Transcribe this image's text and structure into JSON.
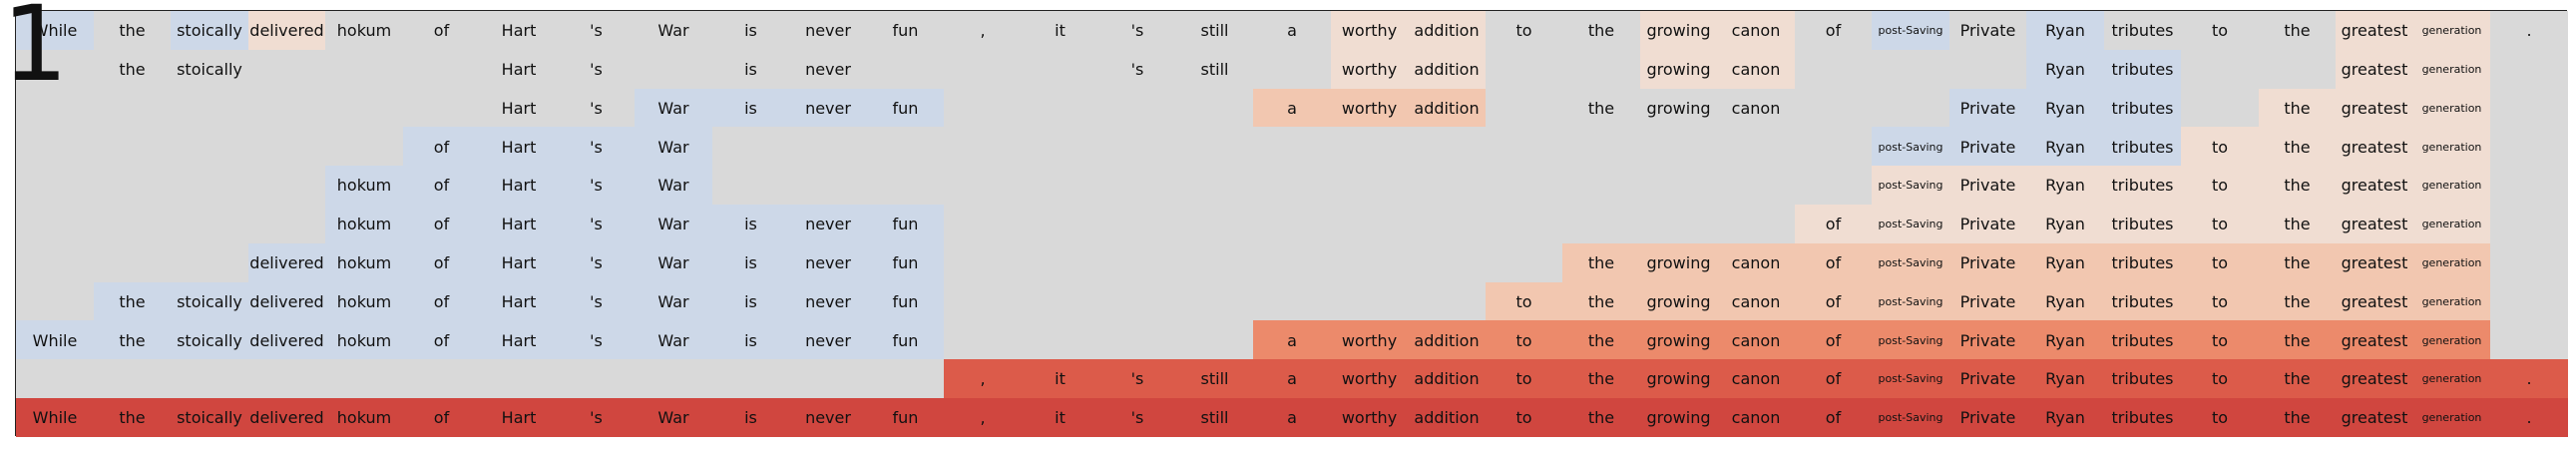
{
  "figure": {
    "title": "1"
  },
  "legend": {
    "empty": "#d9d9d9",
    "scale": [
      "#cdd8e8",
      "#f0ddd2",
      "#f2c7b0",
      "#ec8a6b",
      "#dc5b4a",
      "#d0463f"
    ]
  },
  "tokens": [
    "While",
    "the",
    "stoically",
    "delivered",
    "hokum",
    "of",
    "Hart",
    "'s",
    "War",
    "is",
    "never",
    "fun",
    ",",
    "it",
    "'s",
    "still",
    "a",
    "worthy",
    "addition",
    "to",
    "the",
    "growing",
    "canon",
    "of",
    "post-Saving",
    "Private",
    "Ryan",
    "tributes",
    "to",
    "the",
    "greatest",
    "generation",
    "."
  ],
  "rows": [
    {
      "cells": [
        [
          0,
          1
        ],
        [
          1,
          0
        ],
        [
          2,
          1
        ],
        [
          3,
          2
        ],
        [
          4,
          0
        ],
        [
          5,
          0
        ],
        [
          6,
          0
        ],
        [
          7,
          0
        ],
        [
          8,
          0
        ],
        [
          9,
          0
        ],
        [
          10,
          0
        ],
        [
          11,
          0
        ],
        [
          12,
          0
        ],
        [
          13,
          0
        ],
        [
          14,
          0
        ],
        [
          15,
          0
        ],
        [
          16,
          0
        ],
        [
          17,
          2
        ],
        [
          18,
          2
        ],
        [
          19,
          0
        ],
        [
          20,
          0
        ],
        [
          21,
          2
        ],
        [
          22,
          2
        ],
        [
          23,
          0
        ],
        [
          24,
          1
        ],
        [
          25,
          0
        ],
        [
          26,
          1
        ],
        [
          27,
          0
        ],
        [
          28,
          0
        ],
        [
          29,
          0
        ],
        [
          30,
          2
        ],
        [
          31,
          2
        ],
        [
          32,
          0
        ]
      ]
    },
    {
      "cells": [
        [
          0,
          -1
        ],
        [
          1,
          0
        ],
        [
          2,
          0
        ],
        [
          3,
          -1
        ],
        [
          4,
          -1
        ],
        [
          5,
          -1
        ],
        [
          6,
          0
        ],
        [
          7,
          0
        ],
        [
          8,
          -1
        ],
        [
          9,
          0
        ],
        [
          10,
          0
        ],
        [
          11,
          -1
        ],
        [
          12,
          -1
        ],
        [
          13,
          -1
        ],
        [
          14,
          0
        ],
        [
          15,
          0
        ],
        [
          16,
          -1
        ],
        [
          17,
          2
        ],
        [
          18,
          2
        ],
        [
          19,
          -1
        ],
        [
          20,
          -1
        ],
        [
          21,
          2
        ],
        [
          22,
          2
        ],
        [
          23,
          -1
        ],
        [
          24,
          -1
        ],
        [
          25,
          -1
        ],
        [
          26,
          1
        ],
        [
          27,
          1
        ],
        [
          28,
          -1
        ],
        [
          29,
          -1
        ],
        [
          30,
          2
        ],
        [
          31,
          2
        ],
        [
          32,
          -1
        ]
      ]
    },
    {
      "cells": [
        [
          0,
          -1
        ],
        [
          1,
          -1
        ],
        [
          2,
          -1
        ],
        [
          3,
          -1
        ],
        [
          4,
          -1
        ],
        [
          5,
          -1
        ],
        [
          6,
          0
        ],
        [
          7,
          0
        ],
        [
          8,
          1
        ],
        [
          9,
          1
        ],
        [
          10,
          1
        ],
        [
          11,
          1
        ],
        [
          12,
          -1
        ],
        [
          13,
          -1
        ],
        [
          14,
          -1
        ],
        [
          15,
          -1
        ],
        [
          16,
          3
        ],
        [
          17,
          3
        ],
        [
          18,
          3
        ],
        [
          19,
          -1
        ],
        [
          20,
          0
        ],
        [
          21,
          0
        ],
        [
          22,
          0
        ],
        [
          23,
          -1
        ],
        [
          24,
          -1
        ],
        [
          25,
          1
        ],
        [
          26,
          1
        ],
        [
          27,
          1
        ],
        [
          28,
          -1
        ],
        [
          29,
          2
        ],
        [
          30,
          2
        ],
        [
          31,
          2
        ],
        [
          32,
          -1
        ]
      ]
    },
    {
      "cells": [
        [
          0,
          -1
        ],
        [
          1,
          -1
        ],
        [
          2,
          -1
        ],
        [
          3,
          -1
        ],
        [
          4,
          -1
        ],
        [
          5,
          1
        ],
        [
          6,
          1
        ],
        [
          7,
          1
        ],
        [
          8,
          1
        ],
        [
          9,
          -1
        ],
        [
          10,
          -1
        ],
        [
          11,
          -1
        ],
        [
          12,
          -1
        ],
        [
          13,
          -1
        ],
        [
          14,
          -1
        ],
        [
          15,
          -1
        ],
        [
          16,
          -1
        ],
        [
          17,
          -1
        ],
        [
          18,
          -1
        ],
        [
          19,
          -1
        ],
        [
          20,
          -1
        ],
        [
          21,
          -1
        ],
        [
          22,
          -1
        ],
        [
          23,
          -1
        ],
        [
          24,
          1
        ],
        [
          25,
          1
        ],
        [
          26,
          1
        ],
        [
          27,
          1
        ],
        [
          28,
          2
        ],
        [
          29,
          2
        ],
        [
          30,
          2
        ],
        [
          31,
          2
        ],
        [
          32,
          -1
        ]
      ]
    },
    {
      "cells": [
        [
          0,
          -1
        ],
        [
          1,
          -1
        ],
        [
          2,
          -1
        ],
        [
          3,
          -1
        ],
        [
          4,
          1
        ],
        [
          5,
          1
        ],
        [
          6,
          1
        ],
        [
          7,
          1
        ],
        [
          8,
          1
        ],
        [
          9,
          -1
        ],
        [
          10,
          -1
        ],
        [
          11,
          -1
        ],
        [
          12,
          -1
        ],
        [
          13,
          -1
        ],
        [
          14,
          -1
        ],
        [
          15,
          -1
        ],
        [
          16,
          -1
        ],
        [
          17,
          -1
        ],
        [
          18,
          -1
        ],
        [
          19,
          -1
        ],
        [
          20,
          -1
        ],
        [
          21,
          -1
        ],
        [
          22,
          -1
        ],
        [
          23,
          -1
        ],
        [
          24,
          2
        ],
        [
          25,
          2
        ],
        [
          26,
          2
        ],
        [
          27,
          2
        ],
        [
          28,
          2
        ],
        [
          29,
          2
        ],
        [
          30,
          2
        ],
        [
          31,
          2
        ],
        [
          32,
          -1
        ]
      ]
    },
    {
      "cells": [
        [
          0,
          -1
        ],
        [
          1,
          -1
        ],
        [
          2,
          -1
        ],
        [
          3,
          -1
        ],
        [
          4,
          1
        ],
        [
          5,
          1
        ],
        [
          6,
          1
        ],
        [
          7,
          1
        ],
        [
          8,
          1
        ],
        [
          9,
          1
        ],
        [
          10,
          1
        ],
        [
          11,
          1
        ],
        [
          12,
          -1
        ],
        [
          13,
          -1
        ],
        [
          14,
          -1
        ],
        [
          15,
          -1
        ],
        [
          16,
          -1
        ],
        [
          17,
          -1
        ],
        [
          18,
          -1
        ],
        [
          19,
          -1
        ],
        [
          20,
          -1
        ],
        [
          21,
          -1
        ],
        [
          22,
          -1
        ],
        [
          23,
          2
        ],
        [
          24,
          2
        ],
        [
          25,
          2
        ],
        [
          26,
          2
        ],
        [
          27,
          2
        ],
        [
          28,
          2
        ],
        [
          29,
          2
        ],
        [
          30,
          2
        ],
        [
          31,
          2
        ],
        [
          32,
          -1
        ]
      ]
    },
    {
      "cells": [
        [
          0,
          -1
        ],
        [
          1,
          -1
        ],
        [
          2,
          -1
        ],
        [
          3,
          1
        ],
        [
          4,
          1
        ],
        [
          5,
          1
        ],
        [
          6,
          1
        ],
        [
          7,
          1
        ],
        [
          8,
          1
        ],
        [
          9,
          1
        ],
        [
          10,
          1
        ],
        [
          11,
          1
        ],
        [
          12,
          -1
        ],
        [
          13,
          -1
        ],
        [
          14,
          -1
        ],
        [
          15,
          -1
        ],
        [
          16,
          -1
        ],
        [
          17,
          -1
        ],
        [
          18,
          -1
        ],
        [
          19,
          -1
        ],
        [
          20,
          3
        ],
        [
          21,
          3
        ],
        [
          22,
          3
        ],
        [
          23,
          3
        ],
        [
          24,
          3
        ],
        [
          25,
          3
        ],
        [
          26,
          3
        ],
        [
          27,
          3
        ],
        [
          28,
          3
        ],
        [
          29,
          3
        ],
        [
          30,
          3
        ],
        [
          31,
          3
        ],
        [
          32,
          -1
        ]
      ]
    },
    {
      "cells": [
        [
          0,
          -1
        ],
        [
          1,
          1
        ],
        [
          2,
          1
        ],
        [
          3,
          1
        ],
        [
          4,
          1
        ],
        [
          5,
          1
        ],
        [
          6,
          1
        ],
        [
          7,
          1
        ],
        [
          8,
          1
        ],
        [
          9,
          1
        ],
        [
          10,
          1
        ],
        [
          11,
          1
        ],
        [
          12,
          -1
        ],
        [
          13,
          -1
        ],
        [
          14,
          -1
        ],
        [
          15,
          -1
        ],
        [
          16,
          -1
        ],
        [
          17,
          -1
        ],
        [
          18,
          -1
        ],
        [
          19,
          3
        ],
        [
          20,
          3
        ],
        [
          21,
          3
        ],
        [
          22,
          3
        ],
        [
          23,
          3
        ],
        [
          24,
          3
        ],
        [
          25,
          3
        ],
        [
          26,
          3
        ],
        [
          27,
          3
        ],
        [
          28,
          3
        ],
        [
          29,
          3
        ],
        [
          30,
          3
        ],
        [
          31,
          3
        ],
        [
          32,
          -1
        ]
      ]
    },
    {
      "cells": [
        [
          0,
          1
        ],
        [
          1,
          1
        ],
        [
          2,
          1
        ],
        [
          3,
          1
        ],
        [
          4,
          1
        ],
        [
          5,
          1
        ],
        [
          6,
          1
        ],
        [
          7,
          1
        ],
        [
          8,
          1
        ],
        [
          9,
          1
        ],
        [
          10,
          1
        ],
        [
          11,
          1
        ],
        [
          12,
          -1
        ],
        [
          13,
          -1
        ],
        [
          14,
          -1
        ],
        [
          15,
          -1
        ],
        [
          16,
          4
        ],
        [
          17,
          4
        ],
        [
          18,
          4
        ],
        [
          19,
          4
        ],
        [
          20,
          4
        ],
        [
          21,
          4
        ],
        [
          22,
          4
        ],
        [
          23,
          4
        ],
        [
          24,
          4
        ],
        [
          25,
          4
        ],
        [
          26,
          4
        ],
        [
          27,
          4
        ],
        [
          28,
          4
        ],
        [
          29,
          4
        ],
        [
          30,
          4
        ],
        [
          31,
          4
        ],
        [
          32,
          -1
        ]
      ]
    },
    {
      "cells": [
        [
          0,
          -1
        ],
        [
          1,
          -1
        ],
        [
          2,
          -1
        ],
        [
          3,
          -1
        ],
        [
          4,
          -1
        ],
        [
          5,
          -1
        ],
        [
          6,
          -1
        ],
        [
          7,
          -1
        ],
        [
          8,
          -1
        ],
        [
          9,
          -1
        ],
        [
          10,
          -1
        ],
        [
          11,
          -1
        ],
        [
          12,
          5
        ],
        [
          13,
          5
        ],
        [
          14,
          5
        ],
        [
          15,
          5
        ],
        [
          16,
          5
        ],
        [
          17,
          5
        ],
        [
          18,
          5
        ],
        [
          19,
          5
        ],
        [
          20,
          5
        ],
        [
          21,
          5
        ],
        [
          22,
          5
        ],
        [
          23,
          5
        ],
        [
          24,
          5
        ],
        [
          25,
          5
        ],
        [
          26,
          5
        ],
        [
          27,
          5
        ],
        [
          28,
          5
        ],
        [
          29,
          5
        ],
        [
          30,
          5
        ],
        [
          31,
          5
        ],
        [
          32,
          5
        ]
      ]
    },
    {
      "cells": [
        [
          0,
          6
        ],
        [
          1,
          6
        ],
        [
          2,
          6
        ],
        [
          3,
          6
        ],
        [
          4,
          6
        ],
        [
          5,
          6
        ],
        [
          6,
          6
        ],
        [
          7,
          6
        ],
        [
          8,
          6
        ],
        [
          9,
          6
        ],
        [
          10,
          6
        ],
        [
          11,
          6
        ],
        [
          12,
          6
        ],
        [
          13,
          6
        ],
        [
          14,
          6
        ],
        [
          15,
          6
        ],
        [
          16,
          6
        ],
        [
          17,
          6
        ],
        [
          18,
          6
        ],
        [
          19,
          6
        ],
        [
          20,
          6
        ],
        [
          21,
          6
        ],
        [
          22,
          6
        ],
        [
          23,
          6
        ],
        [
          24,
          6
        ],
        [
          25,
          6
        ],
        [
          26,
          6
        ],
        [
          27,
          6
        ],
        [
          28,
          6
        ],
        [
          29,
          6
        ],
        [
          30,
          6
        ],
        [
          31,
          6
        ],
        [
          32,
          6
        ]
      ]
    }
  ],
  "shade_colors": [
    "#d9d9d9",
    "#cdd8e8",
    "#f0ddd2",
    "#f2c7b0",
    "#ec8a6b",
    "#dc5b4a",
    "#d0463f"
  ]
}
